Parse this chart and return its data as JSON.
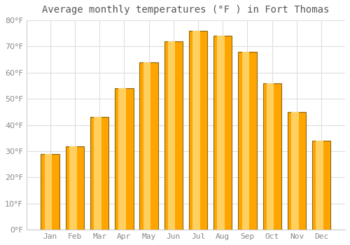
{
  "title": "Average monthly temperatures (°F ) in Fort Thomas",
  "months": [
    "Jan",
    "Feb",
    "Mar",
    "Apr",
    "May",
    "Jun",
    "Jul",
    "Aug",
    "Sep",
    "Oct",
    "Nov",
    "Dec"
  ],
  "values": [
    29,
    32,
    43,
    54,
    64,
    72,
    76,
    74,
    68,
    56,
    45,
    34
  ],
  "bar_color": "#FFA500",
  "bar_edge_color": "#8B6914",
  "background_color": "#ffffff",
  "plot_bg_color": "#ffffff",
  "grid_color": "#dddddd",
  "ylim": [
    0,
    80
  ],
  "yticks": [
    0,
    10,
    20,
    30,
    40,
    50,
    60,
    70,
    80
  ],
  "title_fontsize": 10,
  "tick_fontsize": 8,
  "tick_color": "#888888",
  "title_color": "#555555"
}
